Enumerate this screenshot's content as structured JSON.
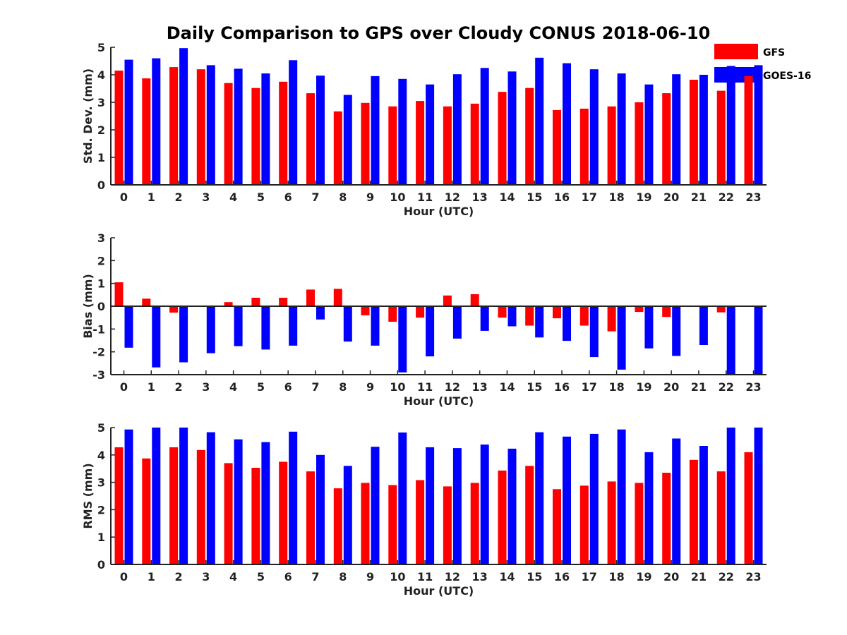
{
  "title": "Daily Comparison to GPS over Cloudy CONUS 2018-06-10",
  "legend": [
    {
      "name": "GFS",
      "color": "#ff0000"
    },
    {
      "name": "GOES-16",
      "color": "#0000ff"
    }
  ],
  "chart_data": [
    {
      "type": "bar",
      "categories": [
        "0",
        "1",
        "2",
        "3",
        "4",
        "5",
        "6",
        "7",
        "8",
        "9",
        "10",
        "11",
        "12",
        "13",
        "14",
        "15",
        "16",
        "17",
        "18",
        "19",
        "20",
        "21",
        "22",
        "23"
      ],
      "xlabel": "Hour (UTC)",
      "ylabel": "Std. Dev. (mm)",
      "ylim": [
        0,
        5
      ],
      "yticks": [
        0,
        1,
        2,
        3,
        4,
        5
      ],
      "series": [
        {
          "name": "GFS",
          "color": "#ff0000",
          "values": [
            4.15,
            3.87,
            4.28,
            4.2,
            3.7,
            3.52,
            3.75,
            3.33,
            2.67,
            2.98,
            2.85,
            3.05,
            2.85,
            2.95,
            3.38,
            3.52,
            2.72,
            2.77,
            2.85,
            3.0,
            3.33,
            3.82,
            3.42,
            3.95
          ]
        },
        {
          "name": "GOES-16",
          "color": "#0000ff",
          "values": [
            4.55,
            4.6,
            4.97,
            4.35,
            4.22,
            4.05,
            4.53,
            3.97,
            3.27,
            3.95,
            3.85,
            3.65,
            4.02,
            4.25,
            4.12,
            4.62,
            4.42,
            4.2,
            4.05,
            3.65,
            4.02,
            4.0,
            4.32,
            4.35
          ]
        }
      ]
    },
    {
      "type": "bar",
      "categories": [
        "0",
        "1",
        "2",
        "3",
        "4",
        "5",
        "6",
        "7",
        "8",
        "9",
        "10",
        "11",
        "12",
        "13",
        "14",
        "15",
        "16",
        "17",
        "18",
        "19",
        "20",
        "21",
        "22",
        "23"
      ],
      "xlabel": "Hour (UTC)",
      "ylabel": "Bias (mm)",
      "ylim": [
        -3,
        3
      ],
      "yticks": [
        -3,
        -2,
        -1,
        0,
        1,
        2,
        3
      ],
      "series": [
        {
          "name": "GFS",
          "color": "#ff0000",
          "values": [
            1.05,
            0.33,
            -0.28,
            0.0,
            0.18,
            0.37,
            0.37,
            0.73,
            0.76,
            -0.4,
            -0.68,
            -0.5,
            0.47,
            0.53,
            -0.5,
            -0.85,
            -0.53,
            -0.85,
            -1.1,
            -0.25,
            -0.47,
            -0.03,
            -0.27,
            -0.02
          ]
        },
        {
          "name": "GOES-16",
          "color": "#0000ff",
          "values": [
            -1.82,
            -2.68,
            -2.46,
            -2.06,
            -1.75,
            -1.9,
            -1.73,
            -0.58,
            -1.55,
            -1.73,
            -2.9,
            -2.2,
            -1.42,
            -1.08,
            -0.88,
            -1.37,
            -1.52,
            -2.23,
            -2.78,
            -1.85,
            -2.18,
            -1.7,
            -3.0,
            -3.0
          ]
        }
      ]
    },
    {
      "type": "bar",
      "categories": [
        "0",
        "1",
        "2",
        "3",
        "4",
        "5",
        "6",
        "7",
        "8",
        "9",
        "10",
        "11",
        "12",
        "13",
        "14",
        "15",
        "16",
        "17",
        "18",
        "19",
        "20",
        "21",
        "22",
        "23"
      ],
      "xlabel": "Hour (UTC)",
      "ylabel": "RMS (mm)",
      "ylim": [
        0,
        5
      ],
      "yticks": [
        0,
        1,
        2,
        3,
        4,
        5
      ],
      "series": [
        {
          "name": "GFS",
          "color": "#ff0000",
          "values": [
            4.28,
            3.87,
            4.28,
            4.18,
            3.7,
            3.53,
            3.75,
            3.4,
            2.78,
            2.98,
            2.9,
            3.08,
            2.85,
            2.98,
            3.43,
            3.6,
            2.75,
            2.88,
            3.03,
            2.98,
            3.35,
            3.82,
            3.4,
            4.1
          ]
        },
        {
          "name": "GOES-16",
          "color": "#0000ff",
          "values": [
            4.93,
            5.0,
            5.0,
            4.83,
            4.57,
            4.47,
            4.85,
            4.0,
            3.6,
            4.3,
            4.82,
            4.28,
            4.25,
            4.38,
            4.23,
            4.83,
            4.67,
            4.77,
            4.93,
            4.1,
            4.6,
            4.33,
            5.0,
            5.0
          ]
        }
      ]
    }
  ]
}
